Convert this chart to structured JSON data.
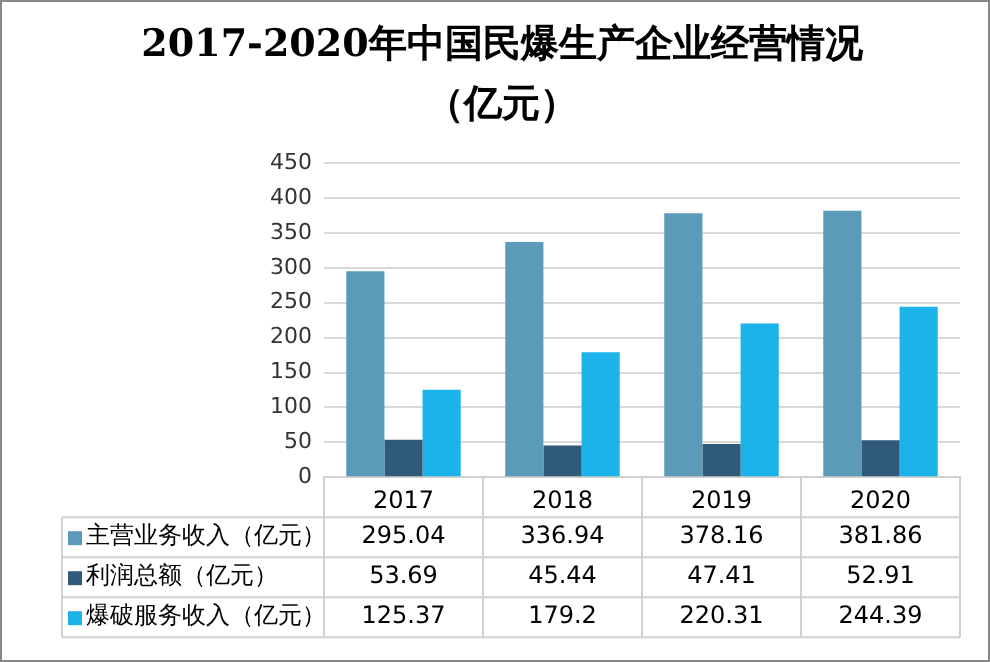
{
  "chart_data": {
    "type": "bar",
    "title": "2017-2020年中国民爆生产企业经营情况（亿元）",
    "categories": [
      "2017",
      "2018",
      "2019",
      "2020"
    ],
    "series": [
      {
        "name": "主营业务收入（亿元）",
        "color": "#5b9ab8",
        "values": [
          295.04,
          336.94,
          378.16,
          381.86
        ]
      },
      {
        "name": "利润总额（亿元）",
        "color": "#2f5a78",
        "values": [
          53.69,
          45.44,
          47.41,
          52.91
        ]
      },
      {
        "name": "爆破服务收入（亿元）",
        "color": "#1cb2ea",
        "values": [
          125.37,
          179.2,
          220.31,
          244.39
        ]
      }
    ],
    "ylim": [
      0,
      450
    ],
    "yticks": [
      0,
      50,
      100,
      150,
      200,
      250,
      300,
      350,
      400,
      450
    ],
    "grid": "y",
    "legend": "bottom",
    "data_labels": true
  }
}
